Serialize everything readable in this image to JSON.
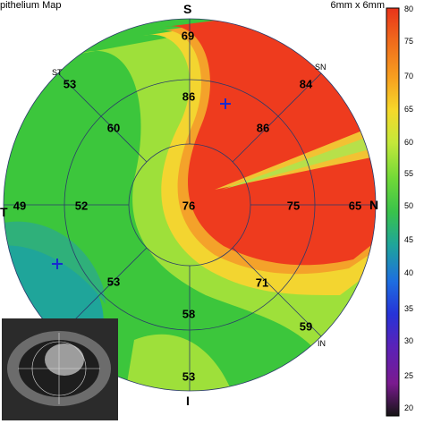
{
  "header": {
    "title": "pithelium Map",
    "scan_size": "6mm x 6mm"
  },
  "orientation": {
    "superior": "S",
    "inferior": "I",
    "nasal": "N",
    "temporal": "T",
    "sn": "SN",
    "st": "ST",
    "in": "IN"
  },
  "zones": {
    "center": "76",
    "superior_inner": "86",
    "superior_outer": "69",
    "superonasal_inner": "86",
    "superonasal_outer": "84",
    "nasal_inner": "75",
    "nasal_outer": "65",
    "inferonasal_inner": "71",
    "inferonasal_outer": "59",
    "inferior_inner": "58",
    "inferior_outer": "53",
    "inferotemporal_inner": "53",
    "temporal_inner": "52",
    "temporal_outer": "49",
    "superotemporal_inner": "60",
    "superotemporal_outer": "53"
  },
  "color_scale": {
    "ticks": [
      "80",
      "75",
      "70",
      "65",
      "60",
      "55",
      "50",
      "45",
      "40",
      "35",
      "30",
      "25",
      "20"
    ],
    "colors": [
      "#e8331a",
      "#f06a1c",
      "#f79f1f",
      "#f6d82a",
      "#c4e83a",
      "#6fd838",
      "#39c24b",
      "#1fa59a",
      "#1d6ee0",
      "#2633d8",
      "#5a22b8",
      "#7a1a8f",
      "#141414"
    ]
  },
  "inset": {
    "type": "camera-thumbnail"
  }
}
